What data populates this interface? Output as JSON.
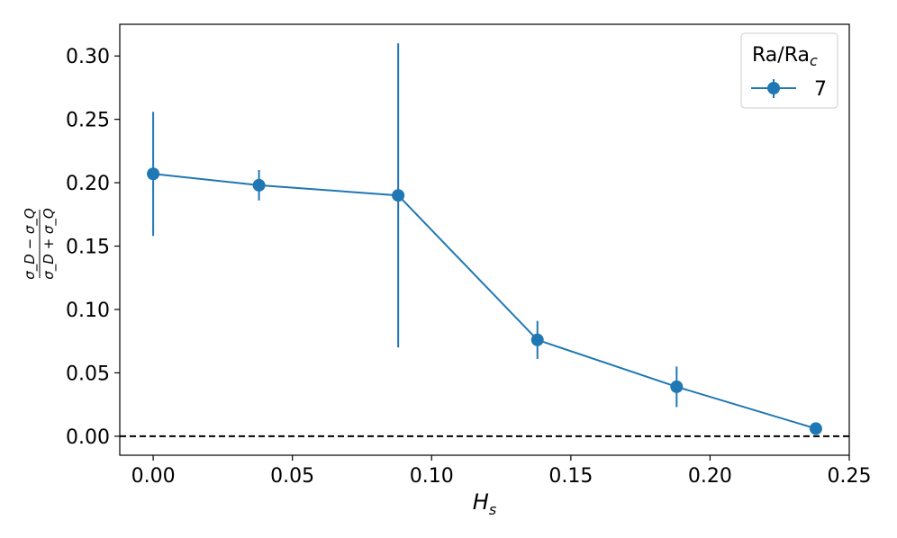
{
  "chart_data": {
    "type": "line",
    "xlabel": "H",
    "xlabel_sub": "s",
    "ylabel": {
      "numerator": "σ_D − σ_Q",
      "denominator": "σ_D + σ_Q"
    },
    "xlim": [
      -0.012,
      0.25
    ],
    "ylim": [
      -0.015,
      0.325
    ],
    "x_ticks": [
      0.0,
      0.05,
      0.1,
      0.15,
      0.2,
      0.25
    ],
    "x_tick_labels": [
      "0.00",
      "0.05",
      "0.10",
      "0.15",
      "0.20",
      "0.25"
    ],
    "y_ticks": [
      0.0,
      0.05,
      0.1,
      0.15,
      0.2,
      0.25,
      0.3
    ],
    "y_tick_labels": [
      "0.00",
      "0.05",
      "0.10",
      "0.15",
      "0.20",
      "0.25",
      "0.30"
    ],
    "grid": false,
    "reference_line": {
      "y": 0.0,
      "style": "dashed",
      "color": "#000000"
    },
    "legend": {
      "title": "Ra/Ra",
      "title_sub": "c",
      "placement": "top-right"
    },
    "series": [
      {
        "name": "7",
        "color": "#1f77b4",
        "x": [
          0.0,
          0.038,
          0.088,
          0.138,
          0.188,
          0.238
        ],
        "y": [
          0.207,
          0.198,
          0.19,
          0.076,
          0.039,
          0.006
        ],
        "yerr": [
          0.049,
          0.012,
          0.12,
          0.015,
          0.016,
          0.003
        ]
      }
    ]
  }
}
